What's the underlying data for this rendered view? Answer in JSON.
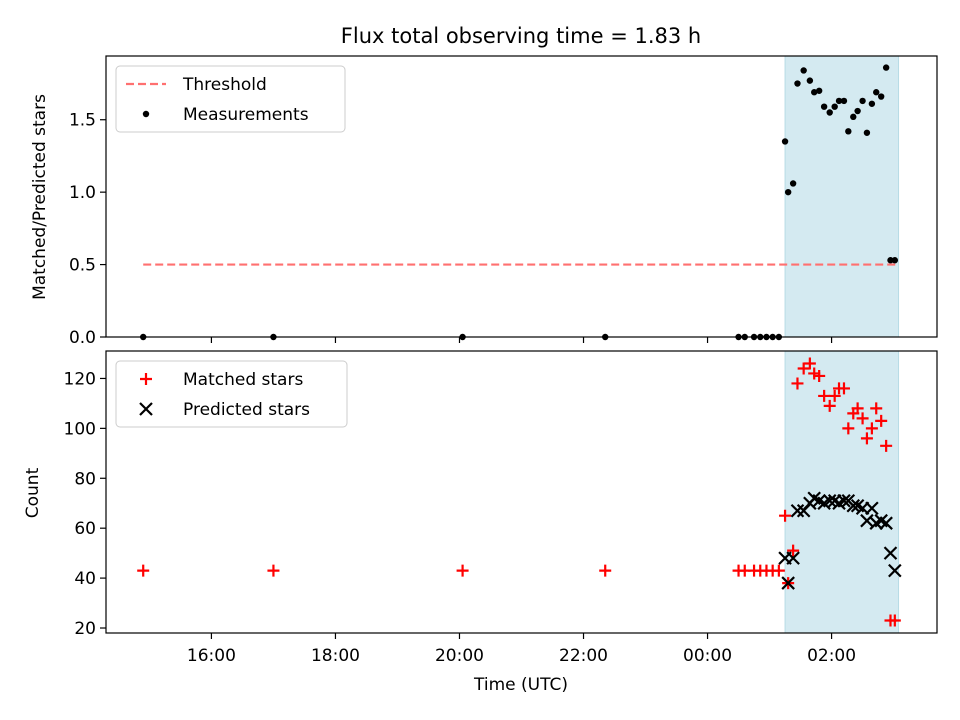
{
  "colors": {
    "span": "#d4eaf1",
    "threshold": "#ff7070",
    "measurement": "#000000",
    "matched": "#ff0000",
    "predicted": "#000000"
  },
  "chart_data": [
    {
      "type": "scatter",
      "panel": "top",
      "title": "Flux total observing time = 1.83 h",
      "xlabel": "",
      "ylabel": "Matched/Predicted stars",
      "ylim": [
        0,
        1.94
      ],
      "yticks": [
        "0.0",
        "0.5",
        "1.0",
        "1.5"
      ],
      "ytick_values": [
        0,
        0.5,
        1.0,
        1.5
      ],
      "shaded_span_hours": [
        1.25,
        3.08
      ],
      "legend": {
        "placement": "top-left",
        "entries": [
          "Threshold",
          "Measurements"
        ]
      },
      "threshold": {
        "name": "Threshold",
        "value": 0.5,
        "x_start": 14.9,
        "x_end": 3.08
      },
      "series": [
        {
          "name": "Measurements",
          "marker": "dot",
          "x": [
            14.9,
            17.0,
            20.05,
            22.35,
            0.5,
            0.6,
            0.75,
            0.85,
            0.95,
            1.05,
            1.15,
            1.25,
            1.3,
            1.38,
            1.45,
            1.55,
            1.65,
            1.72,
            1.8,
            1.88,
            1.97,
            2.05,
            2.12,
            2.2,
            2.27,
            2.35,
            2.42,
            2.5,
            2.57,
            2.65,
            2.72,
            2.8,
            2.88,
            2.95,
            3.02
          ],
          "y": [
            0,
            0,
            0,
            0,
            0,
            0,
            0,
            0,
            0,
            0,
            0,
            1.35,
            1.0,
            1.06,
            1.75,
            1.84,
            1.77,
            1.69,
            1.7,
            1.59,
            1.55,
            1.59,
            1.63,
            1.63,
            1.42,
            1.52,
            1.56,
            1.63,
            1.41,
            1.61,
            1.69,
            1.66,
            1.86,
            0.53,
            0.53
          ]
        }
      ]
    },
    {
      "type": "scatter",
      "panel": "bottom",
      "title": "",
      "xlabel": "Time (UTC)",
      "ylabel": "Count",
      "ylim": [
        18,
        131
      ],
      "yticks": [
        "20",
        "40",
        "60",
        "80",
        "100",
        "120"
      ],
      "ytick_values": [
        20,
        40,
        60,
        80,
        100,
        120
      ],
      "xticks": [
        "16:00",
        "18:00",
        "20:00",
        "22:00",
        "00:00",
        "02:00"
      ],
      "xtick_hours": [
        16,
        18,
        20,
        22,
        24,
        26
      ],
      "shaded_span_hours": [
        1.25,
        3.08
      ],
      "legend": {
        "placement": "top-left",
        "entries": [
          "Matched stars",
          "Predicted stars"
        ]
      },
      "series": [
        {
          "name": "Matched stars",
          "marker": "plus",
          "x": [
            14.9,
            17.0,
            20.05,
            22.35,
            0.5,
            0.6,
            0.75,
            0.85,
            0.95,
            1.05,
            1.15,
            1.25,
            1.3,
            1.38,
            1.45,
            1.55,
            1.65,
            1.72,
            1.8,
            1.88,
            1.97,
            2.05,
            2.12,
            2.2,
            2.27,
            2.35,
            2.42,
            2.5,
            2.57,
            2.65,
            2.72,
            2.8,
            2.88,
            2.95,
            3.02
          ],
          "y": [
            43,
            43,
            43,
            43,
            43,
            43,
            43,
            43,
            43,
            43,
            43,
            65,
            38,
            51,
            118,
            124,
            126,
            122,
            121,
            113,
            109,
            113,
            116,
            116,
            100,
            106,
            108,
            104,
            96,
            100,
            108,
            103,
            93,
            23,
            23
          ]
        },
        {
          "name": "Predicted stars",
          "marker": "x",
          "x": [
            1.25,
            1.3,
            1.38,
            1.45,
            1.55,
            1.65,
            1.72,
            1.8,
            1.88,
            1.97,
            2.05,
            2.12,
            2.2,
            2.27,
            2.35,
            2.42,
            2.5,
            2.57,
            2.65,
            2.72,
            2.8,
            2.88,
            2.95,
            3.02
          ],
          "y": [
            48,
            38,
            48,
            67,
            67,
            70,
            72,
            71,
            70,
            71,
            71,
            70,
            71,
            71,
            69,
            69,
            68,
            63,
            68,
            62,
            63,
            62,
            50,
            43
          ]
        }
      ]
    }
  ]
}
